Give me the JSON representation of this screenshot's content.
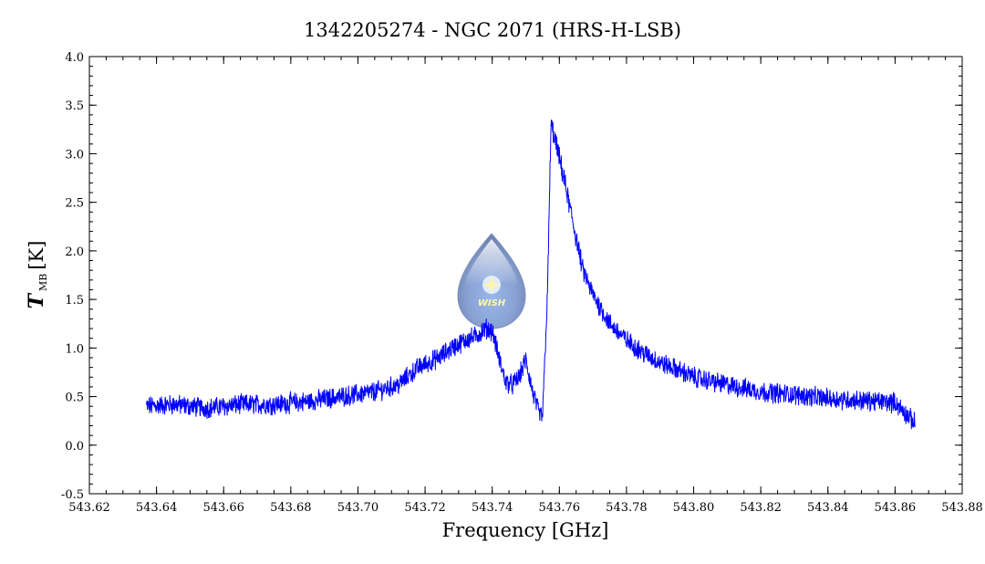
{
  "chart_data": {
    "type": "line",
    "title": "1342205274 - NGC 2071 (HRS-H-LSB)",
    "xlabel": "Frequency [GHz]",
    "ylabel": {
      "main": "T",
      "subscript": "MB",
      "unit": "[K]"
    },
    "xlim": [
      543.62,
      543.88
    ],
    "ylim": [
      -0.5,
      4.0
    ],
    "xticks": [
      "543.62",
      "543.64",
      "543.66",
      "543.68",
      "543.70",
      "543.72",
      "543.74",
      "543.76",
      "543.78",
      "543.80",
      "543.82",
      "543.84",
      "543.86",
      "543.88"
    ],
    "yticks": [
      "-0.5",
      "0.0",
      "0.5",
      "1.0",
      "1.5",
      "2.0",
      "2.5",
      "3.0",
      "3.5",
      "4.0"
    ],
    "grid": false,
    "series": [
      {
        "color": "#0000ff",
        "x": [
          543.637,
          543.645,
          543.655,
          543.665,
          543.675,
          543.685,
          543.695,
          543.705,
          543.712,
          543.718,
          543.724,
          543.728,
          543.732,
          543.735,
          543.738,
          543.74,
          543.742,
          543.744,
          543.746,
          543.748,
          543.75,
          543.752,
          543.754,
          543.755,
          543.7565,
          543.7575,
          543.759,
          543.761,
          543.764,
          543.767,
          543.77,
          543.775,
          543.78,
          543.785,
          543.79,
          543.795,
          543.8,
          543.81,
          543.82,
          543.83,
          543.84,
          543.85,
          543.86,
          543.866
        ],
        "y": [
          0.4,
          0.42,
          0.38,
          0.42,
          0.42,
          0.45,
          0.5,
          0.55,
          0.62,
          0.8,
          0.9,
          1.0,
          1.08,
          1.12,
          1.2,
          1.18,
          0.9,
          0.65,
          0.62,
          0.7,
          0.88,
          0.55,
          0.32,
          0.3,
          1.6,
          3.3,
          3.1,
          2.8,
          2.3,
          1.8,
          1.55,
          1.25,
          1.08,
          0.95,
          0.85,
          0.78,
          0.7,
          0.62,
          0.55,
          0.52,
          0.48,
          0.46,
          0.44,
          0.22
        ]
      }
    ]
  },
  "logo": {
    "text": "WISH"
  }
}
